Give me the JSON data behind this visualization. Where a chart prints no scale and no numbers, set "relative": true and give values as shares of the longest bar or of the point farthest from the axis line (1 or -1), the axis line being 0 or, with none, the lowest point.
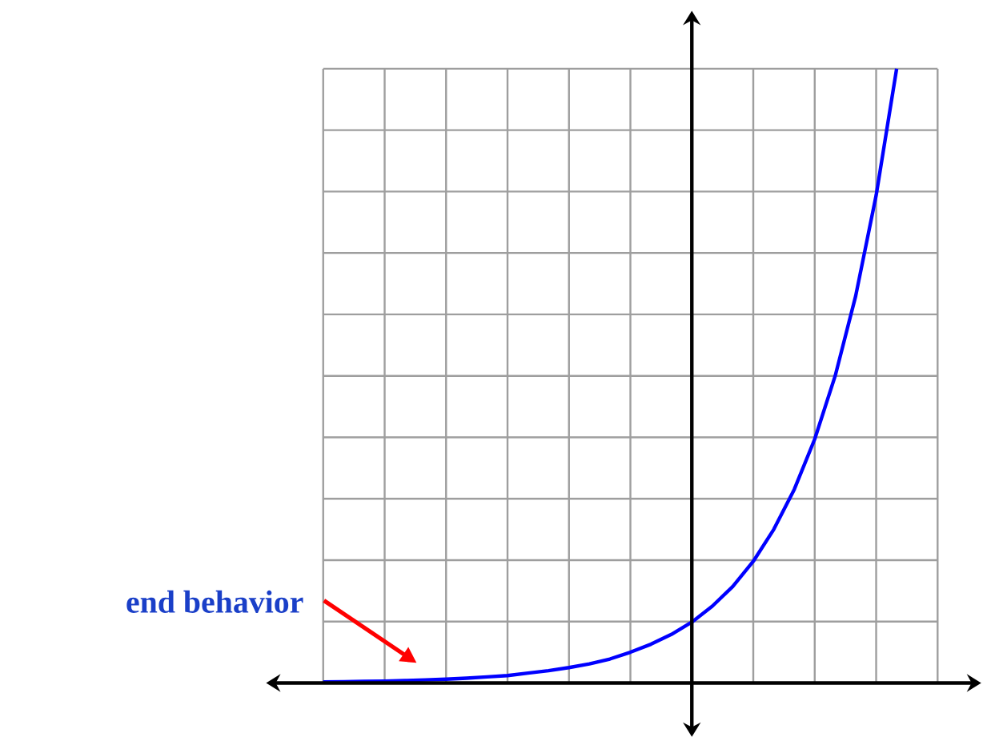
{
  "chart_data": {
    "type": "line",
    "relative": true,
    "grid": true,
    "color": "#0000ff",
    "categories": [
      null,
      null,
      null,
      null,
      null,
      null,
      null,
      null,
      null,
      null,
      null,
      null,
      null,
      null,
      null,
      null,
      null,
      null,
      null,
      null,
      null,
      null,
      null,
      null,
      null,
      null,
      null,
      null,
      null
    ],
    "values": [
      0.0016,
      0.002,
      0.0025,
      0.0031,
      0.0039,
      0.0049,
      0.0062,
      0.0078,
      0.0098,
      0.012,
      0.016,
      0.02,
      0.025,
      0.031,
      0.039,
      0.05,
      0.063,
      0.079,
      0.099,
      0.125,
      0.157,
      0.198,
      0.25,
      0.315,
      0.397,
      0.5,
      0.63,
      0.794,
      1.0
    ],
    "annotations": [
      "end behavior"
    ]
  }
}
